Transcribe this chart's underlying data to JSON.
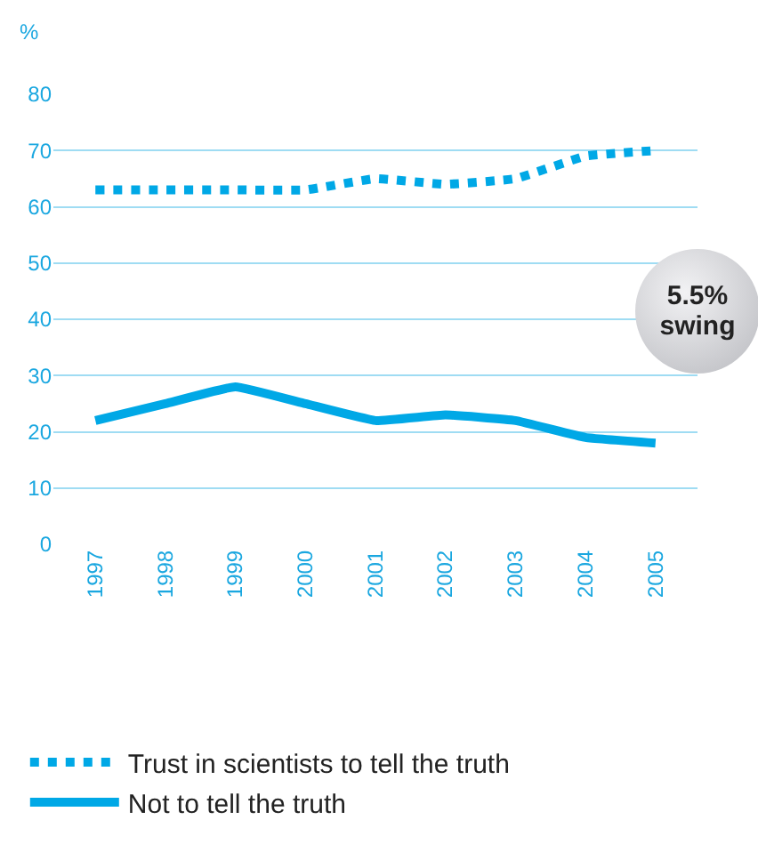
{
  "chart_data": {
    "type": "line",
    "ylabel": "%",
    "categories": [
      "1997",
      "1998",
      "1999",
      "2000",
      "2001",
      "2002",
      "2003",
      "2004",
      "2005"
    ],
    "series": [
      {
        "name": "Trust in scientists to tell the truth",
        "color": "#00a8e6",
        "line_style": "dotted",
        "values": [
          63,
          63,
          63,
          63,
          65,
          64,
          65,
          69,
          70
        ]
      },
      {
        "name": "Not to tell the truth",
        "color": "#00a8e6",
        "line_style": "solid",
        "values": [
          22,
          25,
          28,
          25,
          22,
          23,
          22,
          19,
          18
        ]
      }
    ],
    "ylim": [
      0,
      80
    ],
    "yticks": [
      0,
      10,
      20,
      30,
      40,
      50,
      60,
      70,
      80
    ],
    "grid": "y",
    "legend": "bottom",
    "marker": "none",
    "annotations": [
      "5.5% swing"
    ]
  }
}
